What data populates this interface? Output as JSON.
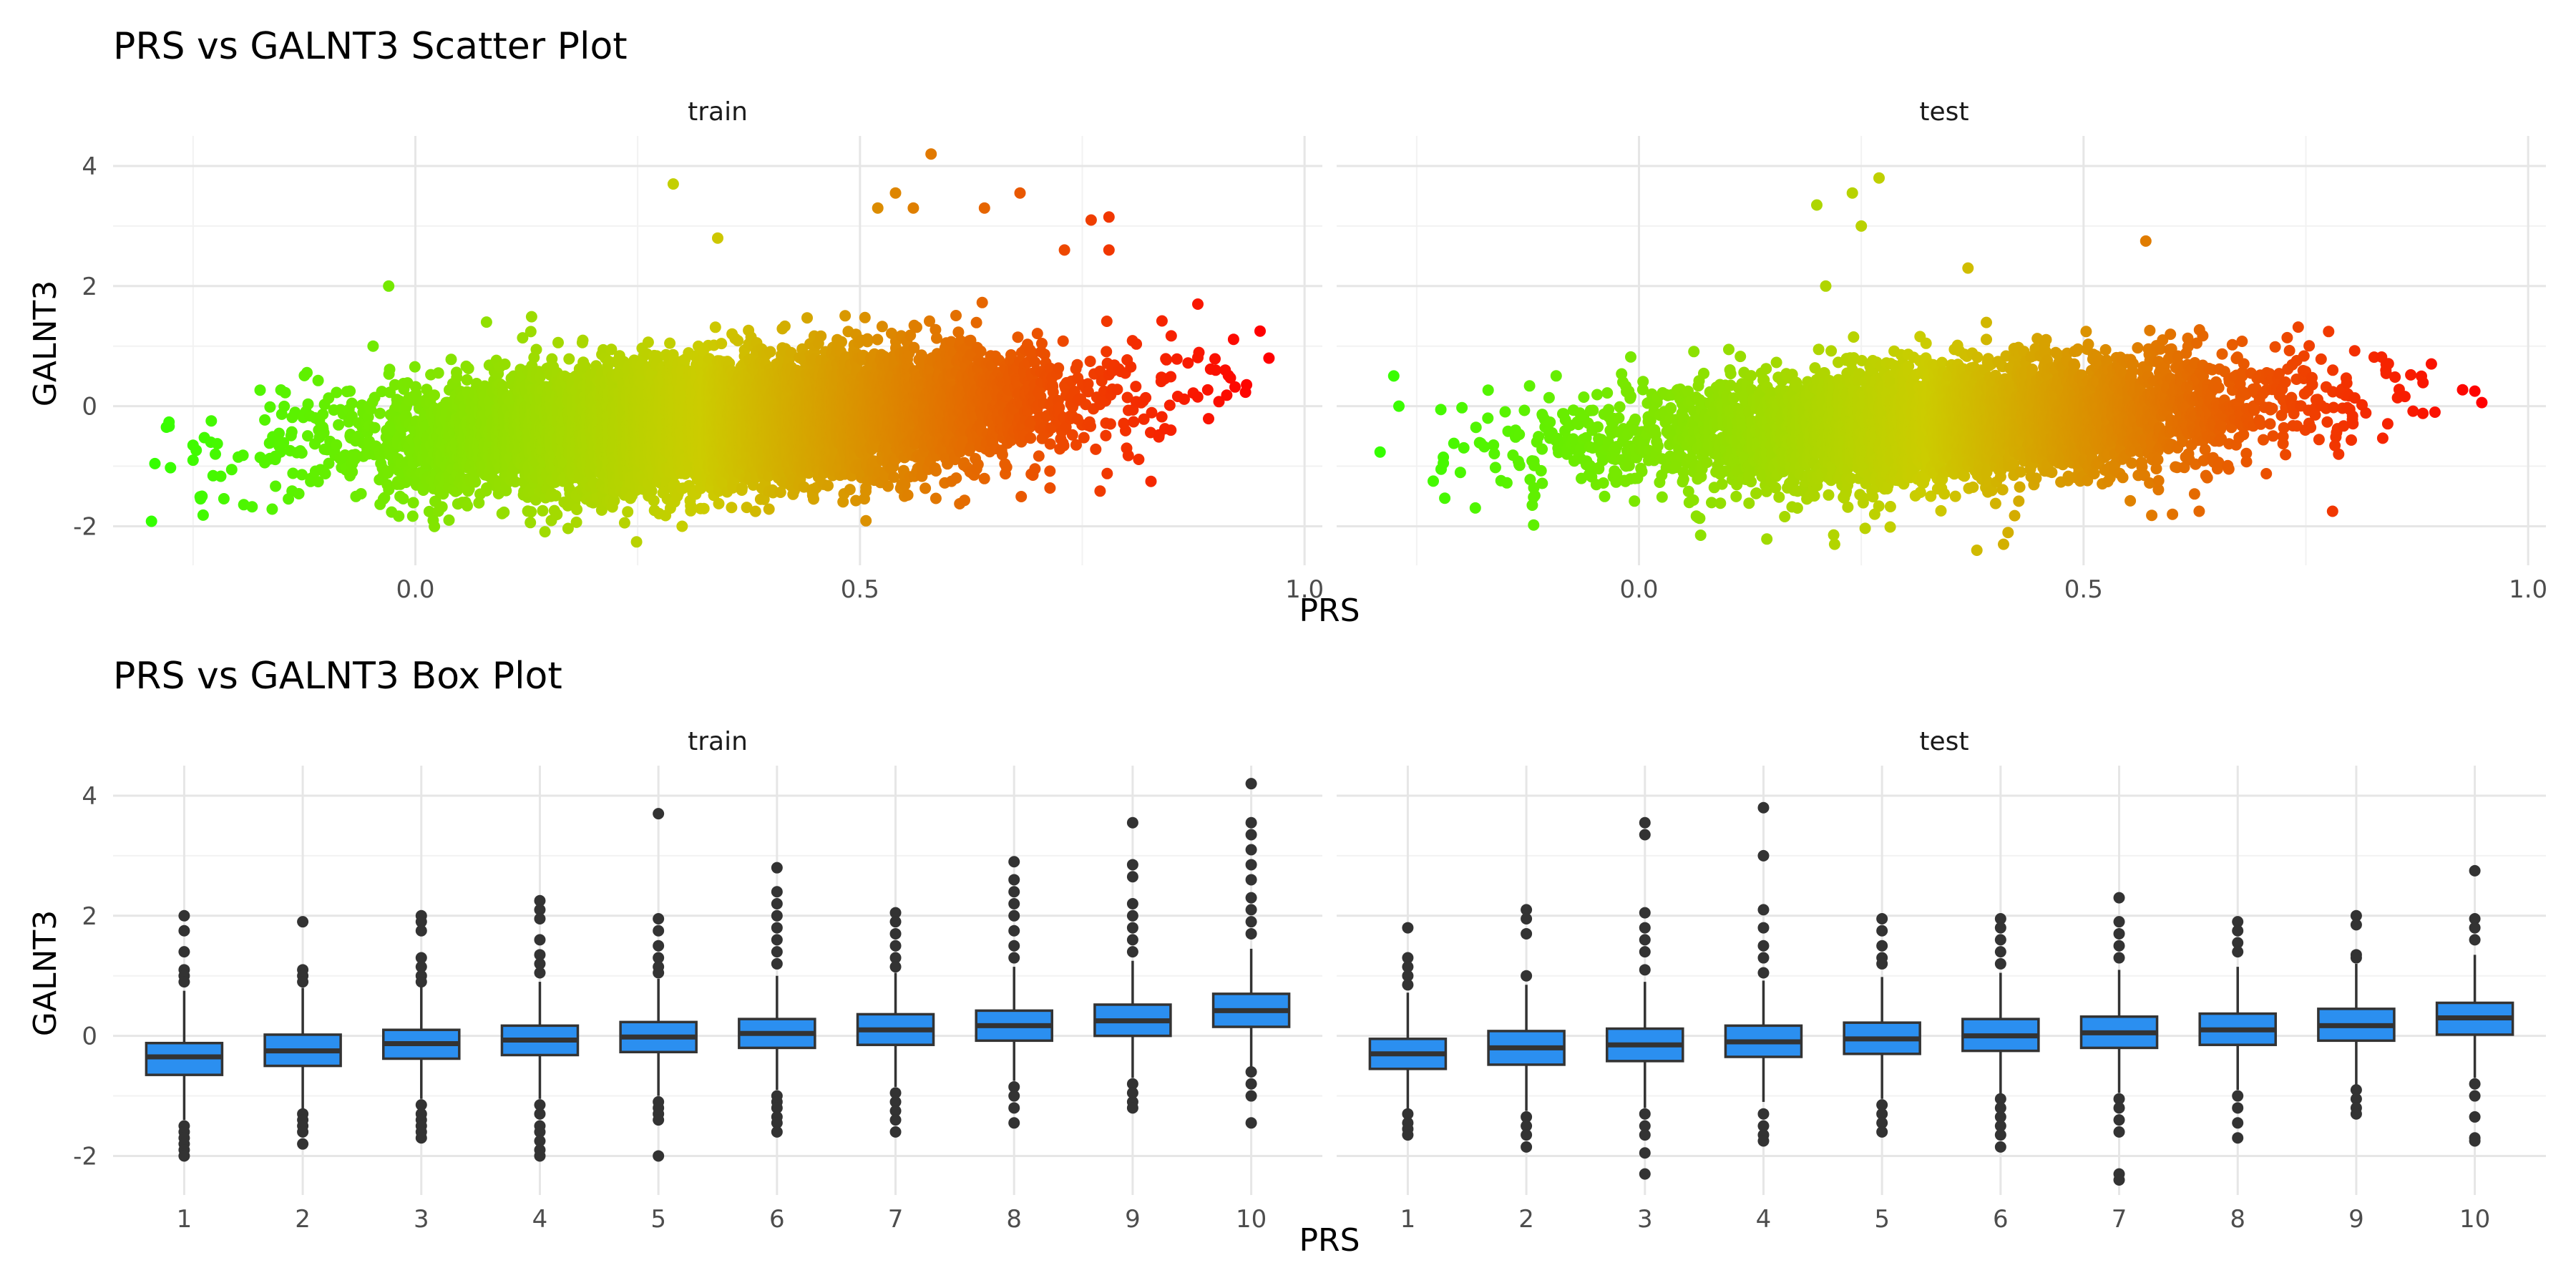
{
  "chart_data": [
    {
      "type": "scatter",
      "title": "PRS vs GALNT3 Scatter Plot",
      "xlabel": "PRS",
      "ylabel": "GALNT3",
      "xlim": [
        -0.34,
        1.02
      ],
      "ylim": [
        -2.65,
        4.5
      ],
      "x_ticks": [
        "0.0",
        "0.5",
        "1.0"
      ],
      "y_ticks": [
        "-2",
        "0",
        "2",
        "4"
      ],
      "color_scale": {
        "low": "#33ff00",
        "mid": "#cccc00",
        "high": "#ff0000",
        "mapped_to": "PRS",
        "range": [
          -0.3,
          0.95
        ]
      },
      "panels": [
        {
          "name": "train",
          "point_count_approx": 20000,
          "trend": {
            "slope": 1.6,
            "intercept": -0.55,
            "sd": 0.5
          },
          "notable_points": [
            [
              -0.28,
              -0.35
            ],
            [
              -0.25,
              -0.65
            ],
            [
              -0.23,
              -0.6
            ],
            [
              -0.25,
              -0.9
            ],
            [
              -0.24,
              -1.5
            ],
            [
              -0.03,
              2.0
            ],
            [
              0.08,
              1.4
            ],
            [
              0.02,
              -1.9
            ],
            [
              0.29,
              3.7
            ],
            [
              0.34,
              2.8
            ],
            [
              0.3,
              -2.0
            ],
            [
              0.52,
              3.3
            ],
            [
              0.54,
              3.55
            ],
            [
              0.58,
              4.2
            ],
            [
              0.56,
              3.3
            ],
            [
              0.64,
              3.3
            ],
            [
              0.68,
              3.55
            ],
            [
              0.76,
              3.1
            ],
            [
              0.78,
              3.15
            ],
            [
              0.73,
              2.6
            ],
            [
              0.78,
              2.6
            ],
            [
              0.95,
              1.25
            ],
            [
              0.96,
              0.8
            ],
            [
              0.9,
              0.6
            ],
            [
              0.88,
              1.7
            ],
            [
              0.55,
              -1.5
            ]
          ]
        },
        {
          "name": "test",
          "point_count_approx": 10000,
          "trend": {
            "slope": 1.55,
            "intercept": -0.55,
            "sd": 0.48
          },
          "notable_points": [
            [
              -0.27,
              0.0
            ],
            [
              -0.22,
              -0.85
            ],
            [
              -0.22,
              -0.95
            ],
            [
              -0.17,
              -0.2
            ],
            [
              0.24,
              3.55
            ],
            [
              0.27,
              3.8
            ],
            [
              0.2,
              3.35
            ],
            [
              0.25,
              3.0
            ],
            [
              0.21,
              2.0
            ],
            [
              0.37,
              2.3
            ],
            [
              0.38,
              -2.4
            ],
            [
              0.41,
              -2.3
            ],
            [
              0.22,
              -2.3
            ],
            [
              0.57,
              2.75
            ],
            [
              0.63,
              -1.75
            ],
            [
              0.78,
              -1.75
            ],
            [
              0.94,
              0.25
            ],
            [
              0.88,
              0.5
            ],
            [
              0.84,
              0.6
            ],
            [
              0.6,
              -1.8
            ]
          ]
        }
      ]
    },
    {
      "type": "box",
      "title": "PRS vs GALNT3 Box Plot",
      "xlabel": "PRS",
      "ylabel": "GALNT3",
      "ylim": [
        -2.65,
        4.5
      ],
      "y_ticks": [
        "-2",
        "0",
        "2",
        "4"
      ],
      "categories": [
        "1",
        "2",
        "3",
        "4",
        "5",
        "6",
        "7",
        "8",
        "9",
        "10"
      ],
      "box_fill": "#2b8ff0",
      "panels": [
        {
          "name": "train",
          "boxes": [
            {
              "q1": -0.65,
              "median": -0.35,
              "q3": -0.12,
              "whisker_low": -1.4,
              "whisker_high": 0.75,
              "outliers": [
                2.0,
                1.75,
                1.4,
                1.1,
                1.0,
                0.9,
                -1.5,
                -1.6,
                -1.7,
                -1.8,
                -1.9,
                -2.0
              ]
            },
            {
              "q1": -0.5,
              "median": -0.25,
              "q3": 0.02,
              "whisker_low": -1.25,
              "whisker_high": 0.8,
              "outliers": [
                1.9,
                1.1,
                1.0,
                0.9,
                -1.3,
                -1.4,
                -1.5,
                -1.6,
                -1.8
              ]
            },
            {
              "q1": -0.38,
              "median": -0.13,
              "q3": 0.1,
              "whisker_low": -1.05,
              "whisker_high": 0.82,
              "outliers": [
                2.0,
                1.9,
                1.75,
                1.3,
                1.15,
                1.0,
                0.9,
                -1.15,
                -1.3,
                -1.4,
                -1.5,
                -1.6,
                -1.7
              ]
            },
            {
              "q1": -0.32,
              "median": -0.07,
              "q3": 0.17,
              "whisker_low": -1.05,
              "whisker_high": 0.9,
              "outliers": [
                2.25,
                2.1,
                1.95,
                1.6,
                1.35,
                1.2,
                1.05,
                -1.15,
                -1.3,
                -1.5,
                -1.6,
                -1.75,
                -1.9,
                -2.0
              ]
            },
            {
              "q1": -0.27,
              "median": -0.02,
              "q3": 0.23,
              "whisker_low": -1.0,
              "whisker_high": 0.95,
              "outliers": [
                3.7,
                1.95,
                1.75,
                1.5,
                1.3,
                1.15,
                1.05,
                -1.1,
                -1.2,
                -1.3,
                -1.4,
                -2.0
              ]
            },
            {
              "q1": -0.2,
              "median": 0.04,
              "q3": 0.28,
              "whisker_low": -0.9,
              "whisker_high": 1.0,
              "outliers": [
                2.8,
                2.4,
                2.2,
                2.0,
                1.8,
                1.6,
                1.4,
                1.2,
                -1.0,
                -1.1,
                -1.2,
                -1.35,
                -1.45,
                -1.6
              ]
            },
            {
              "q1": -0.15,
              "median": 0.1,
              "q3": 0.36,
              "whisker_low": -0.85,
              "whisker_high": 1.05,
              "outliers": [
                2.05,
                1.9,
                1.7,
                1.5,
                1.3,
                1.15,
                -0.95,
                -1.1,
                -1.25,
                -1.4,
                -1.6
              ]
            },
            {
              "q1": -0.08,
              "median": 0.17,
              "q3": 0.42,
              "whisker_low": -0.75,
              "whisker_high": 1.15,
              "outliers": [
                2.9,
                2.6,
                2.4,
                2.2,
                2.0,
                1.75,
                1.5,
                1.3,
                -0.85,
                -1.0,
                -1.2,
                -1.45
              ]
            },
            {
              "q1": 0.0,
              "median": 0.25,
              "q3": 0.52,
              "whisker_low": -0.7,
              "whisker_high": 1.25,
              "outliers": [
                3.55,
                2.85,
                2.65,
                2.2,
                2.0,
                1.8,
                1.6,
                1.4,
                -0.8,
                -0.95,
                -1.1,
                -1.2
              ]
            },
            {
              "q1": 0.15,
              "median": 0.42,
              "q3": 0.7,
              "whisker_low": -0.55,
              "whisker_high": 1.45,
              "outliers": [
                4.2,
                3.55,
                3.35,
                3.1,
                2.85,
                2.6,
                2.3,
                2.1,
                1.9,
                1.7,
                -0.6,
                -0.8,
                -1.0,
                -1.45
              ]
            }
          ]
        },
        {
          "name": "test",
          "boxes": [
            {
              "q1": -0.55,
              "median": -0.3,
              "q3": -0.05,
              "whisker_low": -1.25,
              "whisker_high": 0.72,
              "outliers": [
                1.8,
                1.3,
                1.15,
                1.0,
                0.85,
                -1.3,
                -1.45,
                -1.55,
                -1.65
              ]
            },
            {
              "q1": -0.48,
              "median": -0.2,
              "q3": 0.08,
              "whisker_low": -1.25,
              "whisker_high": 0.85,
              "outliers": [
                2.1,
                1.95,
                1.7,
                1.0,
                -1.35,
                -1.5,
                -1.65,
                -1.85
              ]
            },
            {
              "q1": -0.42,
              "median": -0.15,
              "q3": 0.12,
              "whisker_low": -1.2,
              "whisker_high": 0.9,
              "outliers": [
                3.55,
                3.35,
                2.05,
                1.8,
                1.6,
                1.4,
                1.1,
                -1.3,
                -1.5,
                -1.65,
                -1.95,
                -2.3
              ]
            },
            {
              "q1": -0.35,
              "median": -0.1,
              "q3": 0.17,
              "whisker_low": -1.1,
              "whisker_high": 0.92,
              "outliers": [
                3.8,
                3.0,
                2.1,
                1.8,
                1.5,
                1.3,
                1.05,
                -1.3,
                -1.5,
                -1.65,
                -1.75
              ]
            },
            {
              "q1": -0.3,
              "median": -0.05,
              "q3": 0.22,
              "whisker_low": -1.05,
              "whisker_high": 0.98,
              "outliers": [
                1.95,
                1.75,
                1.5,
                1.3,
                1.2,
                -1.15,
                -1.3,
                -1.45,
                -1.6
              ]
            },
            {
              "q1": -0.25,
              "median": 0.0,
              "q3": 0.28,
              "whisker_low": -1.0,
              "whisker_high": 1.05,
              "outliers": [
                1.95,
                1.8,
                1.6,
                1.4,
                1.2,
                -1.05,
                -1.2,
                -1.35,
                -1.5,
                -1.65,
                -1.85
              ]
            },
            {
              "q1": -0.2,
              "median": 0.05,
              "q3": 0.32,
              "whisker_low": -0.95,
              "whisker_high": 1.1,
              "outliers": [
                2.3,
                1.9,
                1.7,
                1.5,
                1.3,
                -1.05,
                -1.2,
                -1.4,
                -1.6,
                -2.3,
                -2.4
              ]
            },
            {
              "q1": -0.15,
              "median": 0.1,
              "q3": 0.37,
              "whisker_low": -0.9,
              "whisker_high": 1.15,
              "outliers": [
                1.9,
                1.75,
                1.55,
                1.4,
                -1.0,
                -1.2,
                -1.45,
                -1.7
              ]
            },
            {
              "q1": -0.08,
              "median": 0.17,
              "q3": 0.45,
              "whisker_low": -0.85,
              "whisker_high": 1.2,
              "outliers": [
                2.0,
                1.85,
                1.35,
                1.3,
                -0.9,
                -1.05,
                -1.2,
                -1.3
              ]
            },
            {
              "q1": 0.02,
              "median": 0.3,
              "q3": 0.55,
              "whisker_low": -0.7,
              "whisker_high": 1.35,
              "outliers": [
                2.75,
                1.95,
                1.8,
                1.6,
                -0.8,
                -1.0,
                -1.35,
                -1.7,
                -1.75
              ]
            }
          ]
        }
      ]
    }
  ]
}
